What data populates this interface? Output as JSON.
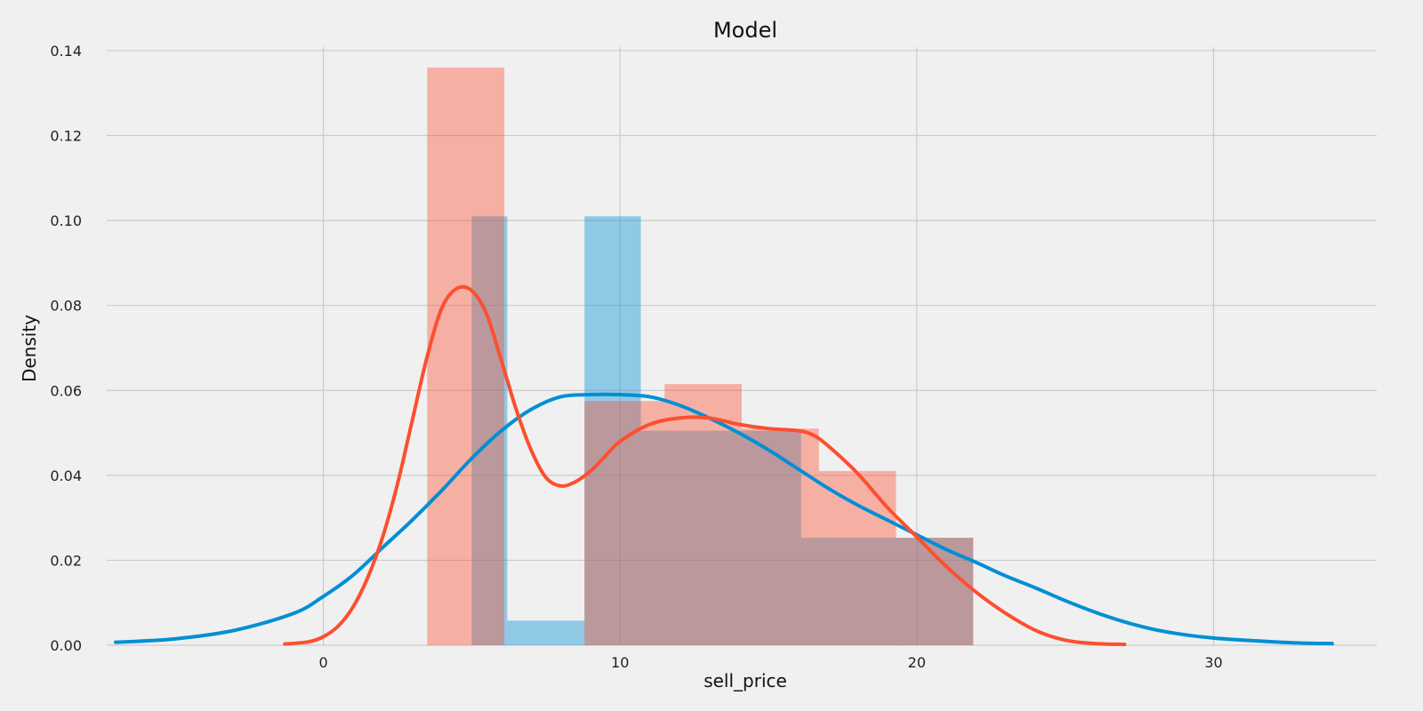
{
  "chart_data": {
    "type": "area",
    "title": "Model",
    "xlabel": "sell_price",
    "ylabel": "Density",
    "xlim": [
      -7.3,
      35.5
    ],
    "ylim": [
      0,
      0.1425
    ],
    "grid": true,
    "legend": "none",
    "x_ticks": [
      "0",
      "10",
      "20",
      "30"
    ],
    "y_ticks": [
      "0.00",
      "0.02",
      "0.04",
      "0.06",
      "0.08",
      "0.10",
      "0.12",
      "0.14"
    ],
    "histograms": [
      {
        "color": "#008fd5",
        "bins": [
          {
            "x0": 5.0,
            "x1": 6.2,
            "value": 0.101
          },
          {
            "x0": 6.2,
            "x1": 8.8,
            "value": 0.0058
          },
          {
            "x0": 8.8,
            "x1": 10.7,
            "value": 0.101
          },
          {
            "x0": 10.7,
            "x1": 16.1,
            "value": 0.0505
          },
          {
            "x0": 16.1,
            "x1": 21.9,
            "value": 0.0253
          }
        ]
      },
      {
        "color": "#fc4f30",
        "bins": [
          {
            "x0": 3.5,
            "x1": 6.1,
            "value": 0.136
          },
          {
            "x0": 6.1,
            "x1": 8.8,
            "value": 0.0
          },
          {
            "x0": 8.8,
            "x1": 11.5,
            "value": 0.0575
          },
          {
            "x0": 11.5,
            "x1": 14.1,
            "value": 0.0615
          },
          {
            "x0": 14.1,
            "x1": 16.7,
            "value": 0.051
          },
          {
            "x0": 16.7,
            "x1": 19.3,
            "value": 0.041
          },
          {
            "x0": 19.3,
            "x1": 21.9,
            "value": 0.0253
          }
        ]
      }
    ],
    "kde_lines": [
      {
        "color": "#008fd5",
        "x": [
          -7.0,
          -5.0,
          -3.0,
          -1.0,
          0.0,
          1.0,
          2.0,
          3.0,
          4.0,
          5.0,
          6.0,
          7.0,
          8.0,
          9.0,
          10.0,
          11.0,
          12.0,
          13.0,
          14.0,
          15.0,
          16.0,
          17.0,
          18.0,
          19.0,
          20.0,
          21.0,
          22.0,
          23.0,
          24.0,
          25.0,
          26.0,
          27.0,
          28.0,
          29.0,
          30.0,
          31.0,
          32.0,
          33.0,
          34.0
        ],
        "y": [
          0.0007,
          0.0015,
          0.0035,
          0.0075,
          0.0115,
          0.0165,
          0.023,
          0.0295,
          0.0365,
          0.044,
          0.0505,
          0.0555,
          0.0585,
          0.059,
          0.059,
          0.0585,
          0.0565,
          0.0535,
          0.05,
          0.046,
          0.0415,
          0.037,
          0.033,
          0.0295,
          0.026,
          0.0225,
          0.0195,
          0.0163,
          0.0135,
          0.0105,
          0.0078,
          0.0055,
          0.0037,
          0.0025,
          0.0017,
          0.0012,
          0.0008,
          0.0005,
          0.0004
        ]
      },
      {
        "color": "#fc4f30",
        "x": [
          -1.3,
          -0.5,
          0.0,
          0.5,
          1.0,
          1.5,
          2.0,
          2.5,
          3.0,
          3.5,
          4.0,
          4.5,
          5.0,
          5.5,
          6.0,
          6.5,
          7.0,
          7.5,
          8.0,
          8.5,
          9.0,
          9.5,
          10.0,
          11.0,
          12.0,
          13.0,
          14.0,
          15.0,
          16.0,
          16.5,
          17.0,
          18.0,
          19.0,
          20.0,
          21.0,
          22.0,
          23.0,
          24.0,
          25.0,
          26.0,
          27.0
        ],
        "y": [
          0.0003,
          0.0008,
          0.002,
          0.0045,
          0.009,
          0.016,
          0.0255,
          0.038,
          0.053,
          0.068,
          0.0795,
          0.084,
          0.0835,
          0.078,
          0.067,
          0.0555,
          0.046,
          0.0395,
          0.0375,
          0.0385,
          0.041,
          0.0445,
          0.048,
          0.052,
          0.0535,
          0.0535,
          0.052,
          0.051,
          0.0505,
          0.0495,
          0.047,
          0.0405,
          0.0325,
          0.0255,
          0.0185,
          0.0125,
          0.0075,
          0.0035,
          0.0012,
          0.0004,
          0.0002
        ]
      }
    ]
  }
}
